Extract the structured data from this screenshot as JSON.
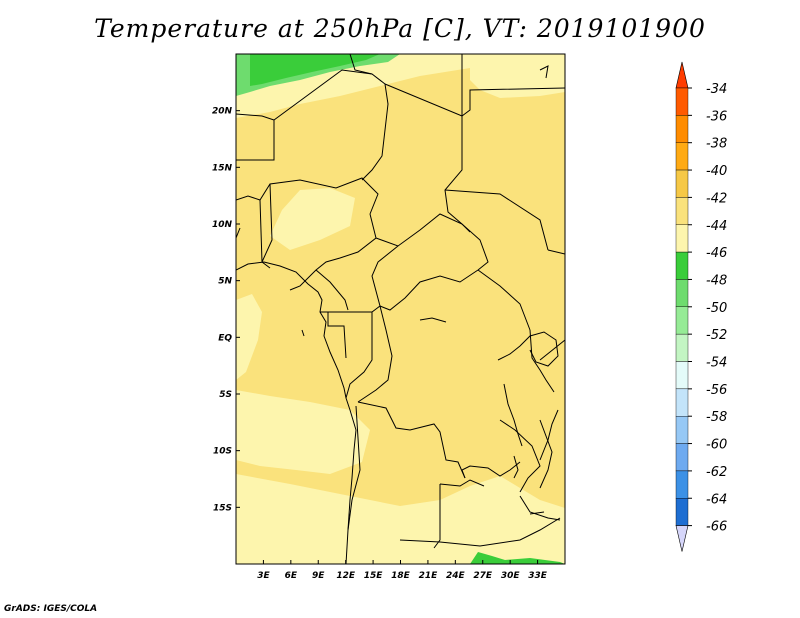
{
  "title": "Temperature at 250hPa [C], VT: 2019101900",
  "footer": "GrADS: IGES/COLA",
  "map": {
    "lon_range": [
      0,
      36
    ],
    "lat_range": [
      -20,
      25
    ],
    "x_ticks": [
      {
        "lon": 3,
        "label": "3E"
      },
      {
        "lon": 6,
        "label": "6E"
      },
      {
        "lon": 9,
        "label": "9E"
      },
      {
        "lon": 12,
        "label": "12E"
      },
      {
        "lon": 15,
        "label": "15E"
      },
      {
        "lon": 18,
        "label": "18E"
      },
      {
        "lon": 21,
        "label": "21E"
      },
      {
        "lon": 24,
        "label": "24E"
      },
      {
        "lon": 27,
        "label": "27E"
      },
      {
        "lon": 30,
        "label": "30E"
      },
      {
        "lon": 33,
        "label": "33E"
      }
    ],
    "y_ticks": [
      {
        "lat": 20,
        "label": "20N"
      },
      {
        "lat": 15,
        "label": "15N"
      },
      {
        "lat": 10,
        "label": "10N"
      },
      {
        "lat": 5,
        "label": "5N"
      },
      {
        "lat": 0,
        "label": "EQ"
      },
      {
        "lat": -5,
        "label": "5S"
      },
      {
        "lat": -10,
        "label": "10S"
      },
      {
        "lat": -15,
        "label": "15S"
      }
    ],
    "fill_colors": {
      "-40_-38": "#fae27c",
      "-42_-40": "#fdf5ad",
      "-44_-42": "#3acd3a",
      "-46_-44": "#6edc6e"
    }
  },
  "colorbar": {
    "labels": [
      "-34",
      "-36",
      "-38",
      "-40",
      "-42",
      "-44",
      "-46",
      "-48",
      "-50",
      "-52",
      "-54",
      "-56",
      "-58",
      "-60",
      "-62",
      "-64",
      "-66"
    ],
    "colors": [
      "#ff5a00",
      "#ff8c00",
      "#ffaa14",
      "#f6c846",
      "#fae27c",
      "#fdf5ad",
      "#3acd3a",
      "#6edc6e",
      "#96eb96",
      "#c3f5c3",
      "#e4fbf9",
      "#c3e4fa",
      "#96c8f5",
      "#6eaaf0",
      "#3c91e6",
      "#1e6ed2",
      "#1450b9",
      "#0a329b",
      "#0a1e64"
    ],
    "top_arrow_color": "#ff3c00",
    "bottom_arrow_color": "#d6d6fa"
  }
}
